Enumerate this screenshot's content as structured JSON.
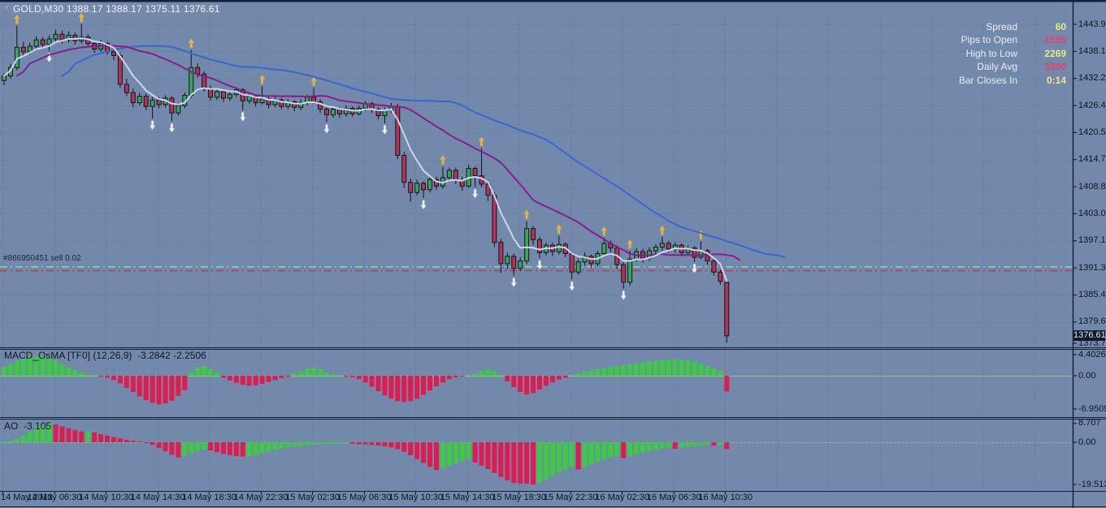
{
  "header": {
    "title": "GOLD,M30  1388.17 1388.17 1375.11 1376.61",
    "collapse_icon": "▼"
  },
  "info_panel": {
    "rows": [
      {
        "label": "Spread",
        "value": "60",
        "value_color": "#ece97f"
      },
      {
        "label": "Pips to Open",
        "value": "-1595",
        "value_color": "#e5416b"
      },
      {
        "label": "High to Low",
        "value": "2269",
        "value_color": "#ece97f"
      },
      {
        "label": "Daily Avg",
        "value": "3300",
        "value_color": "#e5416b"
      },
      {
        "label": "Bar Closes In",
        "value": "0:14",
        "value_color": "#ece97f"
      }
    ]
  },
  "position_marker": {
    "label": "#866950451 sell 0.02"
  },
  "indicator_headers": {
    "macd": {
      "label": "MACD_OsMA [TF0] (12,26,9)",
      "values": "-3.2842 -2.2506"
    },
    "ao": {
      "label": "AO",
      "value": "-3.105"
    }
  },
  "price_axis": {
    "current_tag": "1376.61"
  },
  "colors": {
    "background": "#7389ac",
    "grid": "#5d7296",
    "axis_text": "#0d141f",
    "bull_candle": "#3aa559",
    "bear_candle": "#b23556",
    "wick": "#101418",
    "separator": "#141f38",
    "zero_line": "#86c98a",
    "hist_green": "#3ecb44",
    "hist_red": "#dd1c50",
    "ma_fast": "#ccd6ef",
    "ma_medium": "#8a1b8e",
    "ma_slow": "#3a66d0",
    "arrow_up": "#e8b33c",
    "arrow_down": "#eef3fb",
    "line_teal": "#74dcb4",
    "line_red": "#c23b3b",
    "price_tag_bg": "#0e1b2c",
    "price_tag_text": "#e3eaf2"
  },
  "chart_data": [
    {
      "type": "candlestick",
      "title": "GOLD,M30",
      "symbol": "GOLD",
      "timeframe": "M30",
      "ohlc_title_values": "1388.17 1388.17 1375.11 1376.61",
      "ylim": [
        1373.75,
        1443.95
      ],
      "y_tick_labels": [
        "1443.95",
        "1438.10",
        "1432.25",
        "1426.40",
        "1420.55",
        "1414.70",
        "1408.85",
        "1403.00",
        "1397.15",
        "1391.30",
        "1385.45",
        "1379.60",
        "1373.75"
      ],
      "x_tick_labels": [
        "14 May 2013",
        "14 May 06:30",
        "14 May 10:30",
        "14 May 14:30",
        "14 May 18:30",
        "14 May 22:30",
        "15 May 02:30",
        "15 May 06:30",
        "15 May 10:30",
        "15 May 14:30",
        "15 May 18:30",
        "15 May 22:30",
        "16 May 02:30",
        "16 May 06:30",
        "16 May 10:30"
      ],
      "bars_per_x_tick": 8,
      "grid": true,
      "legend_position": "none",
      "current_price": 1376.61,
      "hlines": [
        {
          "price": 1391.5,
          "color": "#74dcb4",
          "style": "dashdot",
          "name": "target-line"
        },
        {
          "price": 1390.7,
          "color": "#c23b3b",
          "style": "dashdot",
          "name": "sell-open-price-line"
        }
      ],
      "moving_averages": [
        {
          "name": "fast",
          "method": "lwma",
          "period": 8,
          "shift": 0,
          "color": "#ccd6ef"
        },
        {
          "name": "medium",
          "method": "sma",
          "period": 20,
          "shift": 2,
          "color": "#8a1b8e"
        },
        {
          "name": "slow",
          "method": "sma",
          "period": 34,
          "shift": 9,
          "color": "#3a66d0"
        }
      ],
      "signal_arrows": {
        "up_bars": [
          2,
          12,
          29,
          40,
          48,
          68,
          74,
          81,
          86,
          93,
          97,
          102,
          108
        ],
        "down_bars": [
          7,
          23,
          26,
          37,
          50,
          59,
          65,
          73,
          79,
          83,
          88,
          96,
          107
        ],
        "up_color": "#e8b33c",
        "down_color": "#eef3fb"
      },
      "ohlc": [
        [
          1431.8,
          1433.4,
          1430.8,
          1432.8
        ],
        [
          1432.8,
          1435.4,
          1432.2,
          1434.6
        ],
        [
          1434.6,
          1443.6,
          1434.0,
          1439.0
        ],
        [
          1439.0,
          1440.2,
          1437.2,
          1438.0
        ],
        [
          1438.0,
          1440.0,
          1437.4,
          1439.2
        ],
        [
          1439.2,
          1441.4,
          1438.6,
          1440.6
        ],
        [
          1440.6,
          1441.2,
          1438.6,
          1439.6
        ],
        [
          1439.6,
          1441.6,
          1438.2,
          1440.8
        ],
        [
          1440.8,
          1442.8,
          1440.0,
          1441.8
        ],
        [
          1441.8,
          1442.6,
          1439.8,
          1440.6
        ],
        [
          1440.6,
          1442.4,
          1440.0,
          1441.6
        ],
        [
          1441.6,
          1442.2,
          1439.6,
          1440.4
        ],
        [
          1440.4,
          1444.0,
          1439.8,
          1441.2
        ],
        [
          1441.2,
          1441.8,
          1439.2,
          1439.8
        ],
        [
          1439.8,
          1440.4,
          1437.8,
          1438.6
        ],
        [
          1438.6,
          1440.6,
          1438.0,
          1439.8
        ],
        [
          1439.8,
          1440.2,
          1437.4,
          1438.0
        ],
        [
          1438.0,
          1438.8,
          1436.2,
          1437.2
        ],
        [
          1437.2,
          1437.8,
          1430.2,
          1431.0
        ],
        [
          1431.0,
          1432.2,
          1428.4,
          1429.2
        ],
        [
          1429.2,
          1430.0,
          1426.0,
          1427.0
        ],
        [
          1427.0,
          1429.2,
          1426.4,
          1428.4
        ],
        [
          1428.4,
          1429.0,
          1425.4,
          1426.2
        ],
        [
          1426.2,
          1428.2,
          1423.6,
          1427.6
        ],
        [
          1427.6,
          1428.2,
          1425.8,
          1426.6
        ],
        [
          1426.6,
          1428.6,
          1426.0,
          1428.0
        ],
        [
          1428.0,
          1428.4,
          1423.0,
          1424.8
        ],
        [
          1424.8,
          1427.0,
          1424.2,
          1426.4
        ],
        [
          1426.4,
          1429.2,
          1425.8,
          1428.6
        ],
        [
          1428.6,
          1438.4,
          1428.0,
          1434.6
        ],
        [
          1434.6,
          1435.6,
          1432.4,
          1433.2
        ],
        [
          1433.2,
          1433.8,
          1429.4,
          1430.0
        ],
        [
          1430.0,
          1430.8,
          1427.4,
          1428.2
        ],
        [
          1428.2,
          1430.0,
          1427.6,
          1429.4
        ],
        [
          1429.4,
          1429.8,
          1427.2,
          1428.0
        ],
        [
          1428.0,
          1429.6,
          1427.4,
          1428.8
        ],
        [
          1428.8,
          1430.4,
          1428.2,
          1429.8
        ],
        [
          1429.8,
          1430.2,
          1425.4,
          1427.4
        ],
        [
          1427.4,
          1429.0,
          1426.8,
          1428.4
        ],
        [
          1428.4,
          1428.8,
          1426.2,
          1427.0
        ],
        [
          1427.0,
          1430.6,
          1426.6,
          1427.8
        ],
        [
          1427.8,
          1428.2,
          1425.8,
          1426.6
        ],
        [
          1426.6,
          1428.4,
          1426.0,
          1427.6
        ],
        [
          1427.6,
          1428.0,
          1425.6,
          1426.2
        ],
        [
          1426.2,
          1427.8,
          1425.6,
          1427.2
        ],
        [
          1427.2,
          1427.6,
          1425.2,
          1426.0
        ],
        [
          1426.0,
          1427.8,
          1425.4,
          1427.0
        ],
        [
          1427.0,
          1428.8,
          1426.4,
          1428.2
        ],
        [
          1428.2,
          1430.2,
          1426.8,
          1427.2
        ],
        [
          1427.2,
          1427.8,
          1424.8,
          1425.6
        ],
        [
          1425.6,
          1426.2,
          1422.8,
          1424.4
        ],
        [
          1424.4,
          1426.2,
          1423.8,
          1425.6
        ],
        [
          1425.6,
          1426.0,
          1423.8,
          1424.6
        ],
        [
          1424.6,
          1426.4,
          1424.0,
          1425.8
        ],
        [
          1425.8,
          1426.2,
          1424.0,
          1424.6
        ],
        [
          1424.6,
          1426.4,
          1424.2,
          1425.8
        ],
        [
          1425.8,
          1427.4,
          1425.2,
          1426.8
        ],
        [
          1426.8,
          1427.2,
          1424.8,
          1425.6
        ],
        [
          1425.6,
          1426.0,
          1423.4,
          1424.2
        ],
        [
          1424.2,
          1426.0,
          1422.6,
          1425.4
        ],
        [
          1425.4,
          1427.0,
          1424.8,
          1426.2
        ],
        [
          1426.2,
          1426.8,
          1414.8,
          1415.6
        ],
        [
          1415.6,
          1416.4,
          1408.6,
          1409.8
        ],
        [
          1409.8,
          1410.6,
          1405.6,
          1407.6
        ],
        [
          1407.6,
          1410.4,
          1407.0,
          1409.6
        ],
        [
          1409.6,
          1410.0,
          1406.4,
          1408.2
        ],
        [
          1408.2,
          1411.0,
          1407.6,
          1410.4
        ],
        [
          1410.4,
          1411.0,
          1408.2,
          1409.0
        ],
        [
          1409.0,
          1413.2,
          1408.4,
          1410.8
        ],
        [
          1410.8,
          1413.0,
          1410.2,
          1412.4
        ],
        [
          1412.4,
          1413.0,
          1409.4,
          1410.2
        ],
        [
          1410.2,
          1411.0,
          1408.0,
          1409.0
        ],
        [
          1409.0,
          1413.6,
          1408.6,
          1412.8
        ],
        [
          1412.8,
          1413.2,
          1408.8,
          1411.2
        ],
        [
          1411.2,
          1417.2,
          1408.8,
          1409.4
        ],
        [
          1409.4,
          1410.2,
          1405.8,
          1407.0
        ],
        [
          1407.0,
          1407.6,
          1395.8,
          1396.8
        ],
        [
          1396.8,
          1397.6,
          1390.2,
          1392.2
        ],
        [
          1392.2,
          1394.6,
          1391.0,
          1393.8
        ],
        [
          1393.8,
          1394.4,
          1389.6,
          1391.2
        ],
        [
          1391.2,
          1393.6,
          1390.6,
          1392.8
        ],
        [
          1392.8,
          1401.4,
          1392.2,
          1399.8
        ],
        [
          1399.8,
          1400.4,
          1396.2,
          1397.4
        ],
        [
          1397.4,
          1398.0,
          1393.4,
          1394.6
        ],
        [
          1394.6,
          1396.8,
          1394.0,
          1396.2
        ],
        [
          1396.2,
          1396.8,
          1393.8,
          1394.8
        ],
        [
          1394.8,
          1398.2,
          1394.2,
          1396.4
        ],
        [
          1396.4,
          1396.8,
          1393.6,
          1394.4
        ],
        [
          1394.4,
          1394.8,
          1388.8,
          1390.4
        ],
        [
          1390.4,
          1393.2,
          1389.8,
          1392.6
        ],
        [
          1392.6,
          1394.6,
          1391.8,
          1393.8
        ],
        [
          1393.8,
          1394.2,
          1391.2,
          1392.2
        ],
        [
          1392.2,
          1395.0,
          1391.6,
          1394.4
        ],
        [
          1394.4,
          1397.8,
          1393.8,
          1396.6
        ],
        [
          1396.6,
          1397.2,
          1394.6,
          1395.6
        ],
        [
          1395.6,
          1396.2,
          1391.0,
          1392.0
        ],
        [
          1392.0,
          1392.6,
          1386.8,
          1388.2
        ],
        [
          1388.2,
          1395.0,
          1387.4,
          1393.2
        ],
        [
          1393.2,
          1395.6,
          1392.6,
          1394.8
        ],
        [
          1394.8,
          1395.4,
          1392.4,
          1393.4
        ],
        [
          1393.4,
          1395.8,
          1392.8,
          1395.0
        ],
        [
          1395.0,
          1396.4,
          1394.2,
          1395.8
        ],
        [
          1395.8,
          1398.0,
          1395.0,
          1396.6
        ],
        [
          1396.6,
          1397.2,
          1394.6,
          1395.4
        ],
        [
          1395.4,
          1396.8,
          1394.6,
          1396.2
        ],
        [
          1396.2,
          1396.6,
          1393.8,
          1394.6
        ],
        [
          1394.6,
          1396.2,
          1394.0,
          1395.6
        ],
        [
          1395.6,
          1396.0,
          1392.6,
          1393.6
        ],
        [
          1393.6,
          1397.0,
          1393.2,
          1395.0
        ],
        [
          1395.0,
          1395.4,
          1392.0,
          1392.8
        ],
        [
          1392.8,
          1393.2,
          1389.6,
          1390.4
        ],
        [
          1390.4,
          1391.0,
          1387.6,
          1388.4
        ],
        [
          1388.17,
          1388.17,
          1375.11,
          1376.61
        ]
      ]
    },
    {
      "type": "bar",
      "name": "MACD_OsMA",
      "params": "[TF0] (12,26,9)",
      "current_values": [
        -3.2842,
        -2.2506
      ],
      "ylim": [
        -6.9509,
        4.4026
      ],
      "y_tick_labels": [
        "4.4026",
        "0.00",
        "-6.9509"
      ],
      "color_rule": "sign",
      "positive_color": "#3ecb44",
      "negative_color": "#dd1c50",
      "values": [
        1.8,
        2.5,
        3.1,
        3.6,
        3.9,
        4.1,
        4.0,
        3.7,
        3.2,
        2.5,
        1.8,
        1.2,
        0.7,
        0.3,
        0.1,
        -0.1,
        -0.4,
        -0.9,
        -1.6,
        -2.5,
        -3.4,
        -4.3,
        -5.1,
        -5.7,
        -6.0,
        -5.8,
        -5.2,
        -4.2,
        -3.0,
        0.8,
        1.6,
        2.0,
        1.4,
        0.6,
        -0.4,
        -1.0,
        -1.5,
        -1.9,
        -2.1,
        -2.0,
        -1.7,
        -1.3,
        -0.9,
        -0.5,
        -0.2,
        0.4,
        0.9,
        1.4,
        1.7,
        1.3,
        0.7,
        0.3,
        0.1,
        -0.2,
        -0.3,
        -0.7,
        -1.4,
        -2.3,
        -3.2,
        -4.1,
        -4.8,
        -5.3,
        -5.5,
        -5.3,
        -4.8,
        -4.0,
        -3.1,
        -2.2,
        -1.4,
        -0.7,
        -0.3,
        -0.1,
        0.2,
        0.5,
        1.0,
        1.3,
        0.9,
        0.2,
        -1.2,
        -2.4,
        -3.4,
        -3.9,
        -3.6,
        -2.9,
        -2.1,
        -1.4,
        -0.8,
        -0.4,
        0.2,
        0.5,
        0.8,
        1.1,
        1.4,
        1.6,
        1.8,
        2.0,
        2.2,
        2.4,
        2.6,
        2.8,
        3.0,
        3.15,
        3.3,
        3.4,
        3.45,
        3.4,
        3.2,
        2.9,
        2.5,
        2.0,
        1.5,
        1.0,
        -3.2842
      ]
    },
    {
      "type": "bar",
      "name": "AO",
      "current_value": -3.105,
      "ylim": [
        -19.513,
        8.707
      ],
      "y_tick_labels": [
        "8.707",
        "0.00",
        "-19.513"
      ],
      "color_rule": "rising-green",
      "positive_color": "#3ecb44",
      "negative_color": "#dd1c50",
      "values": [
        0.2,
        0.6,
        1.6,
        3.2,
        5.0,
        6.8,
        8.0,
        8.707,
        8.2,
        7.4,
        6.5,
        5.7,
        5.0,
        5.3,
        4.6,
        3.8,
        3.1,
        2.4,
        1.8,
        1.2,
        0.7,
        0.3,
        -0.2,
        -1.2,
        -2.6,
        -4.2,
        -5.8,
        -7.0,
        -6.2,
        -5.2,
        -4.2,
        -3.4,
        -3.8,
        -4.6,
        -5.4,
        -6.0,
        -6.4,
        -6.6,
        -6.5,
        -5.8,
        -5.0,
        -4.2,
        -3.5,
        -2.9,
        -2.4,
        -2.0,
        -1.7,
        -1.4,
        -1.2,
        -1.0,
        -0.9,
        -0.8,
        -0.7,
        -0.6,
        -0.7,
        -0.8,
        -1.0,
        -1.2,
        -1.5,
        -1.9,
        -2.4,
        -3.2,
        -4.4,
        -6.0,
        -7.8,
        -9.6,
        -11.4,
        -12.8,
        -12.0,
        -10.8,
        -9.6,
        -8.6,
        -7.8,
        -9.4,
        -10.8,
        -12.4,
        -14.2,
        -16.0,
        -17.6,
        -18.8,
        -19.0,
        -19.2,
        -19.513,
        -18.6,
        -17.2,
        -15.6,
        -14.0,
        -12.6,
        -11.4,
        -12.6,
        -11.4,
        -10.2,
        -9.0,
        -7.9,
        -7.0,
        -6.2,
        -7.4,
        -6.4,
        -5.5,
        -4.7,
        -4.0,
        -3.4,
        -2.9,
        -2.5,
        -3.0,
        -2.5,
        -2.1,
        -1.8,
        -1.5,
        -1.3,
        -1.6,
        -1.3,
        -3.105
      ]
    }
  ]
}
